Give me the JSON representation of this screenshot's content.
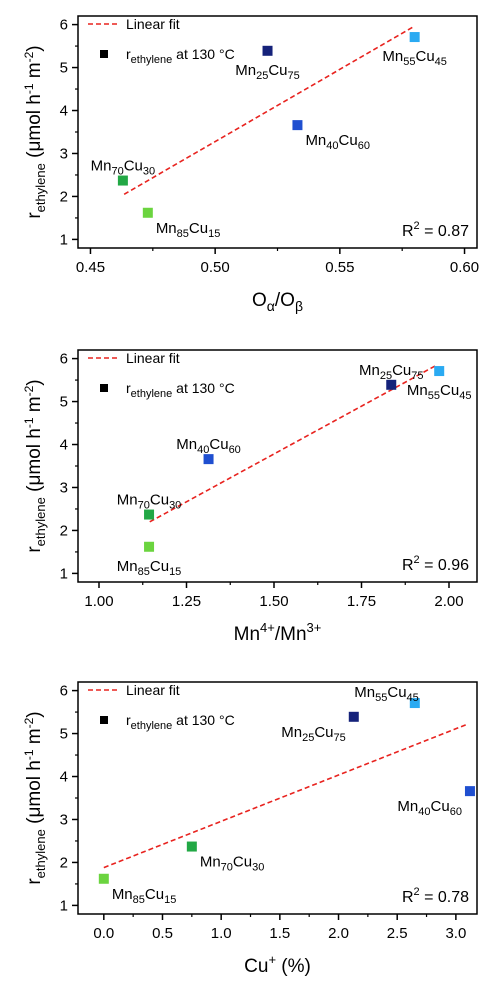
{
  "chart_data": [
    {
      "type": "scatter",
      "xlabel": "Oα/Oβ",
      "xlabel_main": "O",
      "xlabel_sub1": "α",
      "xlabel_sep": "/O",
      "xlabel_sub2": "β",
      "ylabel_main": "r",
      "ylabel_sub": "ethylene",
      "ylabel_unit_a": " (μmol h",
      "ylabel_sup_a": "-1",
      "ylabel_unit_b": " m",
      "ylabel_sup_b": "-2",
      "ylabel_unit_c": ")",
      "xlim": [
        0.445,
        0.605
      ],
      "ylim": [
        0.8,
        6.2
      ],
      "xticks": [
        0.45,
        0.5,
        0.55,
        0.6
      ],
      "xtick_labels": [
        "0.45",
        "0.50",
        "0.55",
        "0.60"
      ],
      "yticks": [
        1,
        2,
        3,
        4,
        5,
        6
      ],
      "ytick_labels": [
        "1",
        "2",
        "3",
        "4",
        "5",
        "6"
      ],
      "legend": {
        "fit_label": "Linear fit",
        "point_main": "r",
        "point_sub": "ethylene",
        "point_rest": " at 130 °C",
        "placement": "top-left"
      },
      "r2_main": "R",
      "r2_sup": "2",
      "r2_value": " = 0.87",
      "fit_line": {
        "x": [
          0.4635,
          0.5795
        ],
        "y": [
          2.05,
          5.95
        ]
      },
      "points": [
        {
          "x": 0.463,
          "y": 2.37,
          "color": "#22a845",
          "n1": "70",
          "n2": "30",
          "lpos": "above"
        },
        {
          "x": 0.473,
          "y": 1.62,
          "color": "#6bd43f",
          "n1": "85",
          "n2": "15",
          "lpos": "below-right"
        },
        {
          "x": 0.521,
          "y": 5.39,
          "color": "#15227a",
          "n1": "25",
          "n2": "75",
          "lpos": "below"
        },
        {
          "x": 0.533,
          "y": 3.66,
          "color": "#1f4fd0",
          "n1": "40",
          "n2": "60",
          "lpos": "below-right"
        },
        {
          "x": 0.58,
          "y": 5.71,
          "color": "#2aaaf2",
          "n1": "55",
          "n2": "45",
          "lpos": "below"
        }
      ]
    },
    {
      "type": "scatter",
      "xlabel_main": "Mn",
      "xlabel_sup1": "4+",
      "xlabel_sep": "/Mn",
      "xlabel_sup2": "3+",
      "ylabel_main": "r",
      "ylabel_sub": "ethylene",
      "ylabel_unit_a": " (μmol h",
      "ylabel_sup_a": "-1",
      "ylabel_unit_b": " m",
      "ylabel_sup_b": "-2",
      "ylabel_unit_c": ")",
      "xlim": [
        0.94,
        2.08
      ],
      "ylim": [
        0.8,
        6.2
      ],
      "xticks": [
        1.0,
        1.25,
        1.5,
        1.75,
        2.0
      ],
      "xtick_labels": [
        "1.00",
        "1.25",
        "1.50",
        "1.75",
        "2.00"
      ],
      "yticks": [
        1,
        2,
        3,
        4,
        5,
        6
      ],
      "ytick_labels": [
        "1",
        "2",
        "3",
        "4",
        "5",
        "6"
      ],
      "legend": {
        "fit_label": "Linear fit",
        "point_main": "r",
        "point_sub": "ethylene",
        "point_rest": " at 130 °C",
        "placement": "top-left"
      },
      "r2_main": "R",
      "r2_sup": "2",
      "r2_value": " = 0.96",
      "fit_line": {
        "x": [
          1.145,
          1.965
        ],
        "y": [
          2.2,
          5.85
        ]
      },
      "points": [
        {
          "x": 1.143,
          "y": 2.37,
          "color": "#22a845",
          "n1": "70",
          "n2": "30",
          "lpos": "above"
        },
        {
          "x": 1.143,
          "y": 1.62,
          "color": "#6bd43f",
          "n1": "85",
          "n2": "15",
          "lpos": "below"
        },
        {
          "x": 1.313,
          "y": 3.66,
          "color": "#1f4fd0",
          "n1": "40",
          "n2": "60",
          "lpos": "above"
        },
        {
          "x": 1.835,
          "y": 5.39,
          "color": "#15227a",
          "n1": "25",
          "n2": "75",
          "lpos": "above"
        },
        {
          "x": 1.972,
          "y": 5.71,
          "color": "#2aaaf2",
          "n1": "55",
          "n2": "45",
          "lpos": "below"
        }
      ]
    },
    {
      "type": "scatter",
      "xlabel_main": "Cu",
      "xlabel_sup1": "+",
      "xlabel_sep": " (%)",
      "ylabel_main": "r",
      "ylabel_sub": "ethylene",
      "ylabel_unit_a": " (μmol h",
      "ylabel_sup_a": "-1",
      "ylabel_unit_b": " m",
      "ylabel_sup_b": "-2",
      "ylabel_unit_c": ")",
      "xlim": [
        -0.22,
        3.18
      ],
      "ylim": [
        0.8,
        6.2
      ],
      "xticks": [
        0.0,
        0.5,
        1.0,
        1.5,
        2.0,
        2.5,
        3.0
      ],
      "xtick_labels": [
        "0.0",
        "0.5",
        "1.0",
        "1.5",
        "2.0",
        "2.5",
        "3.0"
      ],
      "yticks": [
        1,
        2,
        3,
        4,
        5,
        6
      ],
      "ytick_labels": [
        "1",
        "2",
        "3",
        "4",
        "5",
        "6"
      ],
      "legend": {
        "fit_label": "Linear fit",
        "point_main": "r",
        "point_sub": "ethylene",
        "point_rest": " at 130 °C",
        "placement": "top-left"
      },
      "r2_main": "R",
      "r2_sup": "2",
      "r2_value": " = 0.78",
      "fit_line": {
        "x": [
          0.0,
          3.1
        ],
        "y": [
          1.88,
          5.22
        ]
      },
      "points": [
        {
          "x": 0.0,
          "y": 1.62,
          "color": "#6bd43f",
          "n1": "85",
          "n2": "15",
          "lpos": "below-right"
        },
        {
          "x": 0.75,
          "y": 2.37,
          "color": "#22a845",
          "n1": "70",
          "n2": "30",
          "lpos": "below-right"
        },
        {
          "x": 2.13,
          "y": 5.39,
          "color": "#15227a",
          "n1": "25",
          "n2": "75",
          "lpos": "below-left"
        },
        {
          "x": 2.65,
          "y": 5.71,
          "color": "#2aaaf2",
          "n1": "55",
          "n2": "45",
          "lpos": "above-left"
        },
        {
          "x": 3.12,
          "y": 3.66,
          "color": "#1f4fd0",
          "n1": "40",
          "n2": "60",
          "lpos": "below-left"
        }
      ]
    }
  ],
  "sample_prefix_a": "Mn",
  "sample_prefix_b": "Cu",
  "colors": {
    "axis": "#000000",
    "fit": "#e8231f"
  }
}
